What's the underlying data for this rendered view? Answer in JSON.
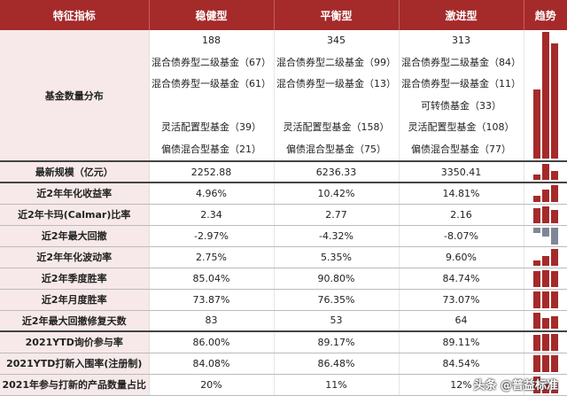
{
  "header": {
    "metric": "特征指标",
    "c1": "稳健型",
    "c2": "平衡型",
    "c3": "激进型",
    "trend": "趋势"
  },
  "distribution": {
    "label": "基金数量分布",
    "c1": [
      "188",
      "混合债券型二级基金（67）",
      "混合债券型一级基金（61）",
      "",
      "灵活配置型基金（39）",
      "偏债混合型基金（21）"
    ],
    "c2": [
      "345",
      "混合债券型二级基金（99）",
      "混合债券型一级基金（13）",
      "",
      "灵活配置型基金（158）",
      "偏债混合型基金（75）"
    ],
    "c3": [
      "313",
      "混合债券型二级基金（84）",
      "混合债券型一级基金（11）",
      "可转债基金（33）",
      "灵活配置型基金（108）",
      "偏债混合型基金（77）"
    ],
    "trend": [
      188,
      345,
      313
    ]
  },
  "rows": [
    {
      "label": "最新规模（亿元）",
      "c1": "2252.88",
      "c2": "6236.33",
      "c3": "3350.41",
      "trend": [
        2252.88,
        6236.33,
        3350.41
      ],
      "thick": true
    },
    {
      "label": "近2年年化收益率",
      "c1": "4.96%",
      "c2": "10.42%",
      "c3": "14.81%",
      "trend": [
        4.96,
        10.42,
        14.81
      ],
      "thick": false
    },
    {
      "label": "近2年卡玛(Calmar)比率",
      "c1": "2.34",
      "c2": "2.77",
      "c3": "2.16",
      "trend": [
        2.34,
        2.77,
        2.16
      ],
      "thick": false
    },
    {
      "label": "近2年最大回撤",
      "c1": "-2.97%",
      "c2": "-4.32%",
      "c3": "-8.07%",
      "trend": [
        -2.97,
        -4.32,
        -8.07
      ],
      "thick": false
    },
    {
      "label": "近2年年化波动率",
      "c1": "2.75%",
      "c2": "5.35%",
      "c3": "9.60%",
      "trend": [
        2.75,
        5.35,
        9.6
      ],
      "thick": false
    },
    {
      "label": "近2年季度胜率",
      "c1": "85.04%",
      "c2": "90.80%",
      "c3": "84.74%",
      "trend": [
        85.04,
        90.8,
        84.74
      ],
      "thick": false
    },
    {
      "label": "近2年月度胜率",
      "c1": "73.87%",
      "c2": "76.35%",
      "c3": "73.07%",
      "trend": [
        73.87,
        76.35,
        73.07
      ],
      "thick": false
    },
    {
      "label": "近2年最大回撤修复天数",
      "c1": "83",
      "c2": "53",
      "c3": "64",
      "trend": [
        83,
        53,
        64
      ],
      "thick": true
    },
    {
      "label": "2021YTD询价参与率",
      "c1": "86.00%",
      "c2": "89.17%",
      "c3": "89.11%",
      "trend": [
        86.0,
        89.17,
        89.11
      ],
      "thick": false
    },
    {
      "label": "2021YTD打新入围率(注册制)",
      "c1": "84.08%",
      "c2": "86.48%",
      "c3": "84.54%",
      "trend": [
        84.08,
        86.48,
        84.54
      ],
      "thick": false
    },
    {
      "label": "2021年参与打新的产品数量占比",
      "c1": "20%",
      "c2": "11%",
      "c3": "12%",
      "trend": [
        20,
        11,
        12
      ],
      "thick": false
    }
  ],
  "watermark": "头条 @普益标准"
}
